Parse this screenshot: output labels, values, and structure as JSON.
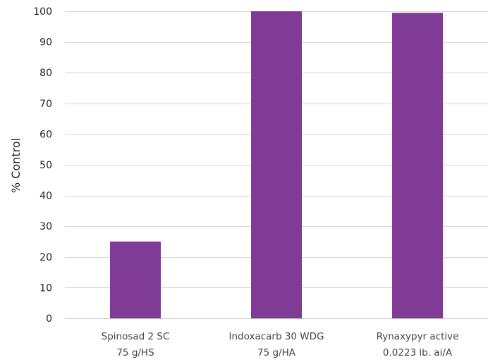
{
  "chart_data": {
    "type": "bar",
    "title": "",
    "xlabel": "",
    "ylabel": "% Control",
    "ylim": [
      0,
      100
    ],
    "yticks": [
      0,
      10,
      20,
      30,
      40,
      50,
      60,
      70,
      80,
      90,
      100
    ],
    "grid": true,
    "legend": "none",
    "bar_color": "#7f3b96",
    "categories": [
      [
        "Spinosad 2 SC",
        "75 g/HS"
      ],
      [
        "Indoxacarb 30 WDG",
        "75 g/HA"
      ],
      [
        "Rynaxypyr active",
        "0.0223 lb. ai/A"
      ]
    ],
    "values": [
      25,
      100,
      99.5
    ]
  }
}
